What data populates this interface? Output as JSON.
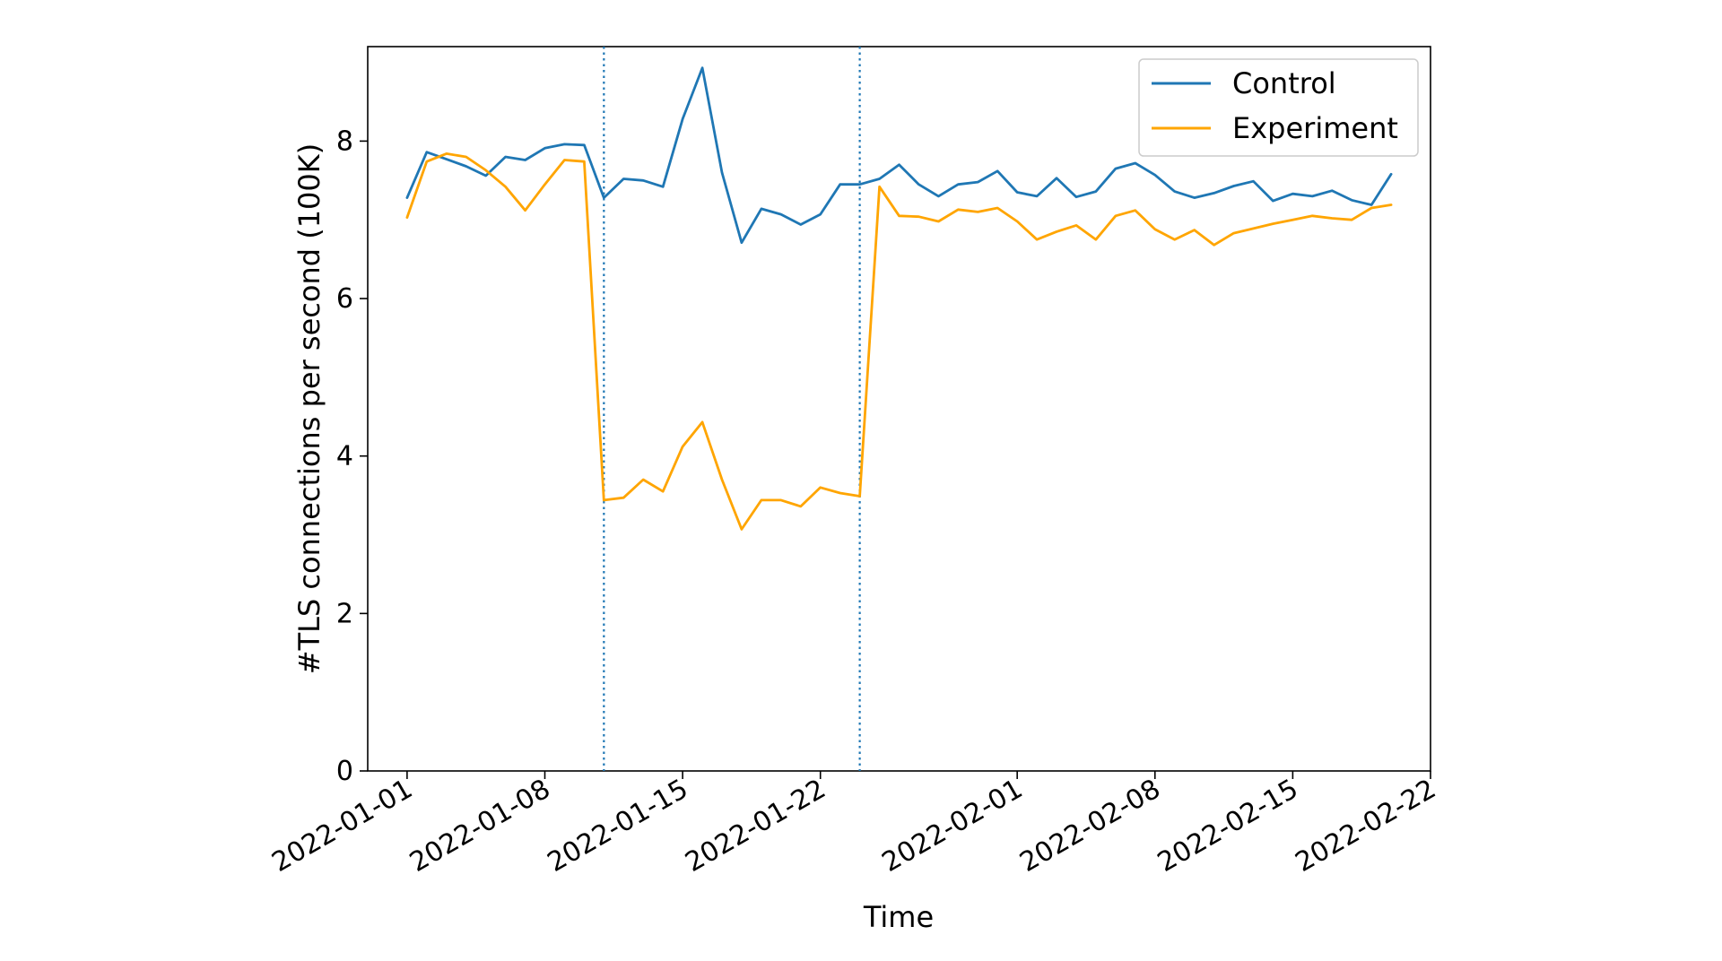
{
  "chart_data": {
    "type": "line",
    "xlabel": "Time",
    "ylabel": "#TLS connections per second (100K)",
    "x_scale": "date",
    "xlim": [
      "2021-12-30",
      "2022-02-22"
    ],
    "ylim": [
      0,
      9.2
    ],
    "x_ticks": [
      "2022-01-01",
      "2022-01-08",
      "2022-01-15",
      "2022-01-22",
      "2022-02-01",
      "2022-02-08",
      "2022-02-15",
      "2022-02-22"
    ],
    "y_ticks": [
      0,
      2,
      4,
      6,
      8
    ],
    "grid": false,
    "legend_position": "top-right",
    "vlines": [
      {
        "x": "2022-01-11",
        "style": "dotted",
        "color": "#1f77b4"
      },
      {
        "x": "2022-01-24",
        "style": "dotted",
        "color": "#1f77b4"
      }
    ],
    "x": [
      "2022-01-01",
      "2022-01-02",
      "2022-01-03",
      "2022-01-04",
      "2022-01-05",
      "2022-01-06",
      "2022-01-07",
      "2022-01-08",
      "2022-01-09",
      "2022-01-10",
      "2022-01-11",
      "2022-01-12",
      "2022-01-13",
      "2022-01-14",
      "2022-01-15",
      "2022-01-16",
      "2022-01-17",
      "2022-01-18",
      "2022-01-19",
      "2022-01-20",
      "2022-01-21",
      "2022-01-22",
      "2022-01-23",
      "2022-01-24",
      "2022-01-25",
      "2022-01-26",
      "2022-01-27",
      "2022-01-28",
      "2022-01-29",
      "2022-01-30",
      "2022-01-31",
      "2022-02-01",
      "2022-02-02",
      "2022-02-03",
      "2022-02-04",
      "2022-02-05",
      "2022-02-06",
      "2022-02-07",
      "2022-02-08",
      "2022-02-09",
      "2022-02-10",
      "2022-02-11",
      "2022-02-12",
      "2022-02-13",
      "2022-02-14",
      "2022-02-15",
      "2022-02-16",
      "2022-02-17",
      "2022-02-18",
      "2022-02-19",
      "2022-02-20"
    ],
    "series": [
      {
        "name": "Control",
        "color": "#1f77b4",
        "values": [
          7.28,
          7.86,
          7.77,
          7.68,
          7.56,
          7.8,
          7.76,
          7.91,
          7.96,
          7.95,
          7.28,
          7.52,
          7.5,
          7.42,
          8.28,
          8.93,
          7.6,
          6.71,
          7.14,
          7.07,
          6.94,
          7.07,
          7.45,
          7.45,
          7.52,
          7.7,
          7.45,
          7.3,
          7.45,
          7.48,
          7.62,
          7.35,
          7.3,
          7.53,
          7.29,
          7.36,
          7.65,
          7.72,
          7.57,
          7.36,
          7.28,
          7.34,
          7.43,
          7.49,
          7.24,
          7.33,
          7.3,
          7.37,
          7.25,
          7.19,
          7.58
        ]
      },
      {
        "name": "Experiment",
        "color": "#ffa500",
        "values": [
          7.03,
          7.74,
          7.84,
          7.8,
          7.63,
          7.42,
          7.12,
          7.45,
          7.76,
          7.74,
          3.44,
          3.47,
          3.7,
          3.55,
          4.12,
          4.43,
          3.7,
          3.07,
          3.44,
          3.44,
          3.36,
          3.6,
          3.53,
          3.49,
          7.42,
          7.05,
          7.04,
          6.98,
          7.13,
          7.1,
          7.15,
          6.98,
          6.75,
          6.85,
          6.93,
          6.75,
          7.05,
          7.12,
          6.88,
          6.75,
          6.87,
          6.68,
          6.83,
          6.89,
          6.95,
          7.0,
          7.05,
          7.02,
          7.0,
          7.15,
          7.19
        ]
      }
    ]
  }
}
